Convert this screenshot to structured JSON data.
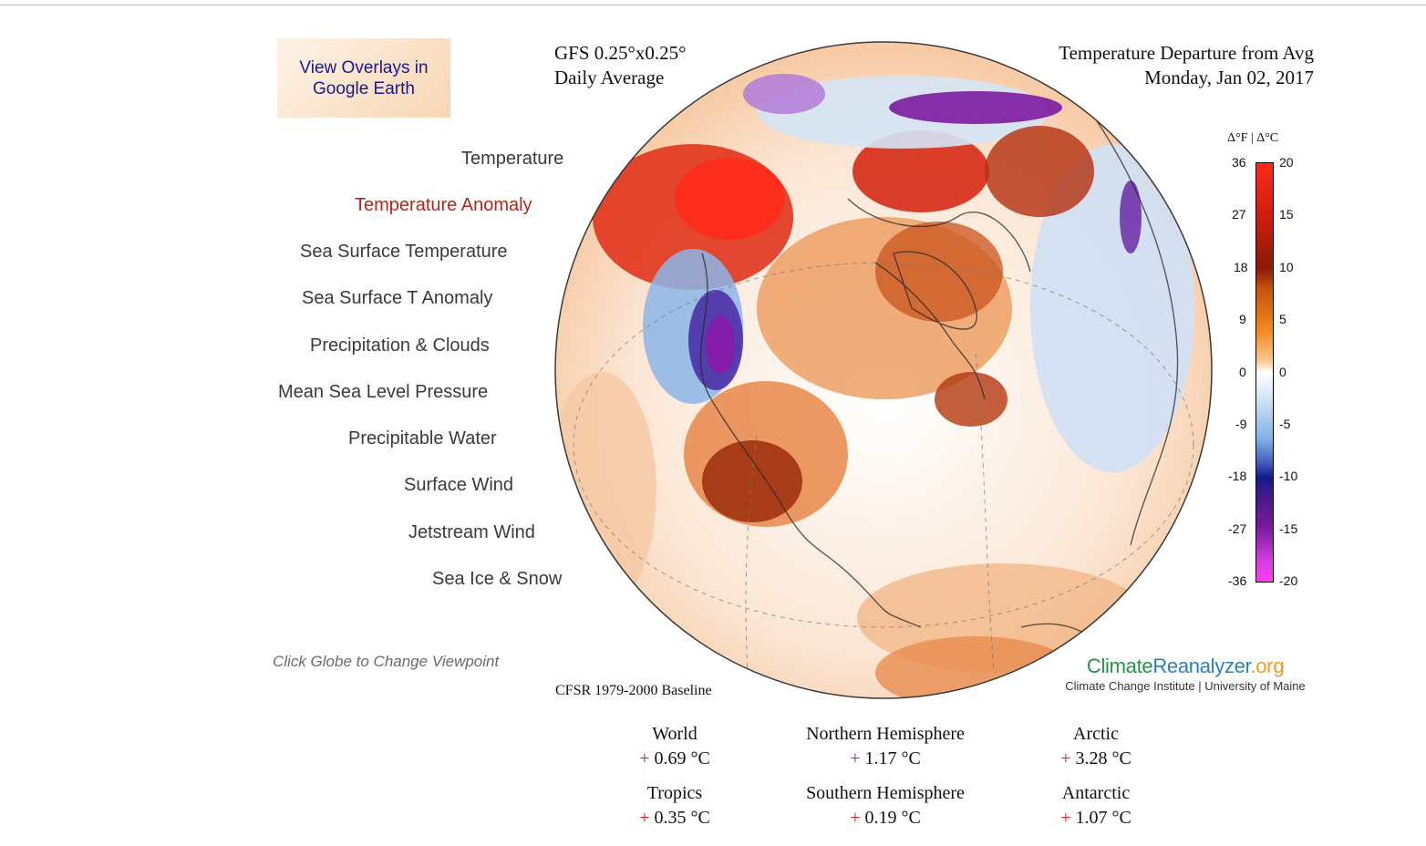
{
  "google_earth_button": {
    "line1": "View Overlays in",
    "line2": "Google Earth"
  },
  "menu": {
    "items": [
      {
        "label": "Temperature",
        "active": false
      },
      {
        "label": "Temperature Anomaly",
        "active": true
      },
      {
        "label": "Sea Surface Temperature",
        "active": false
      },
      {
        "label": "Sea Surface T Anomaly",
        "active": false
      },
      {
        "label": "Precipitation & Clouds",
        "active": false
      },
      {
        "label": "Mean Sea Level Pressure",
        "active": false
      },
      {
        "label": "Precipitable Water",
        "active": false
      },
      {
        "label": "Surface Wind",
        "active": false
      },
      {
        "label": "Jetstream Wind",
        "active": false
      },
      {
        "label": "Sea Ice & Snow",
        "active": false
      }
    ],
    "hint": "Click Globe to Change Viewpoint"
  },
  "map": {
    "model_line1": "GFS 0.25°x0.25°",
    "model_line2": "Daily Average",
    "title": "Temperature Departure from Avg",
    "date": "Monday, Jan 02, 2017",
    "baseline": "CFSR 1979-2000 Baseline"
  },
  "legend": {
    "unit": "Δ°F | Δ°C",
    "f_ticks": [
      "36",
      "27",
      "18",
      "9",
      "0",
      "-9",
      "-18",
      "-27",
      "-36"
    ],
    "c_ticks": [
      "20",
      "15",
      "10",
      "5",
      "0",
      "-5",
      "-10",
      "-15",
      "-20"
    ],
    "colors": {
      "top": "#ff2a1a",
      "warm": "#b3260a",
      "orange": "#f5901e",
      "zero": "#ffffff",
      "cool": "#6fa6e0",
      "deep": "#141a8c",
      "purple": "#7a1a9e",
      "bottom": "#ff3cf0"
    }
  },
  "brand": {
    "part1": "Climate",
    "part2": "Reanalyzer",
    "part3": ".org",
    "sub": "Climate Change Institute | University of Maine"
  },
  "stats": {
    "world": {
      "name": "World",
      "sign": "+",
      "value": "0.69 °C"
    },
    "nh": {
      "name": "Northern Hemisphere",
      "sign": "+",
      "value": "1.17 °C"
    },
    "arctic": {
      "name": "Arctic",
      "sign": "+",
      "value": "3.28 °C"
    },
    "tropics": {
      "name": "Tropics",
      "sign": "+",
      "value": "0.35 °C"
    },
    "sh": {
      "name": "Southern Hemisphere",
      "sign": "+",
      "value": "0.19 °C"
    },
    "antarctic": {
      "name": "Antarctic",
      "sign": "+",
      "value": "1.07 °C"
    }
  }
}
